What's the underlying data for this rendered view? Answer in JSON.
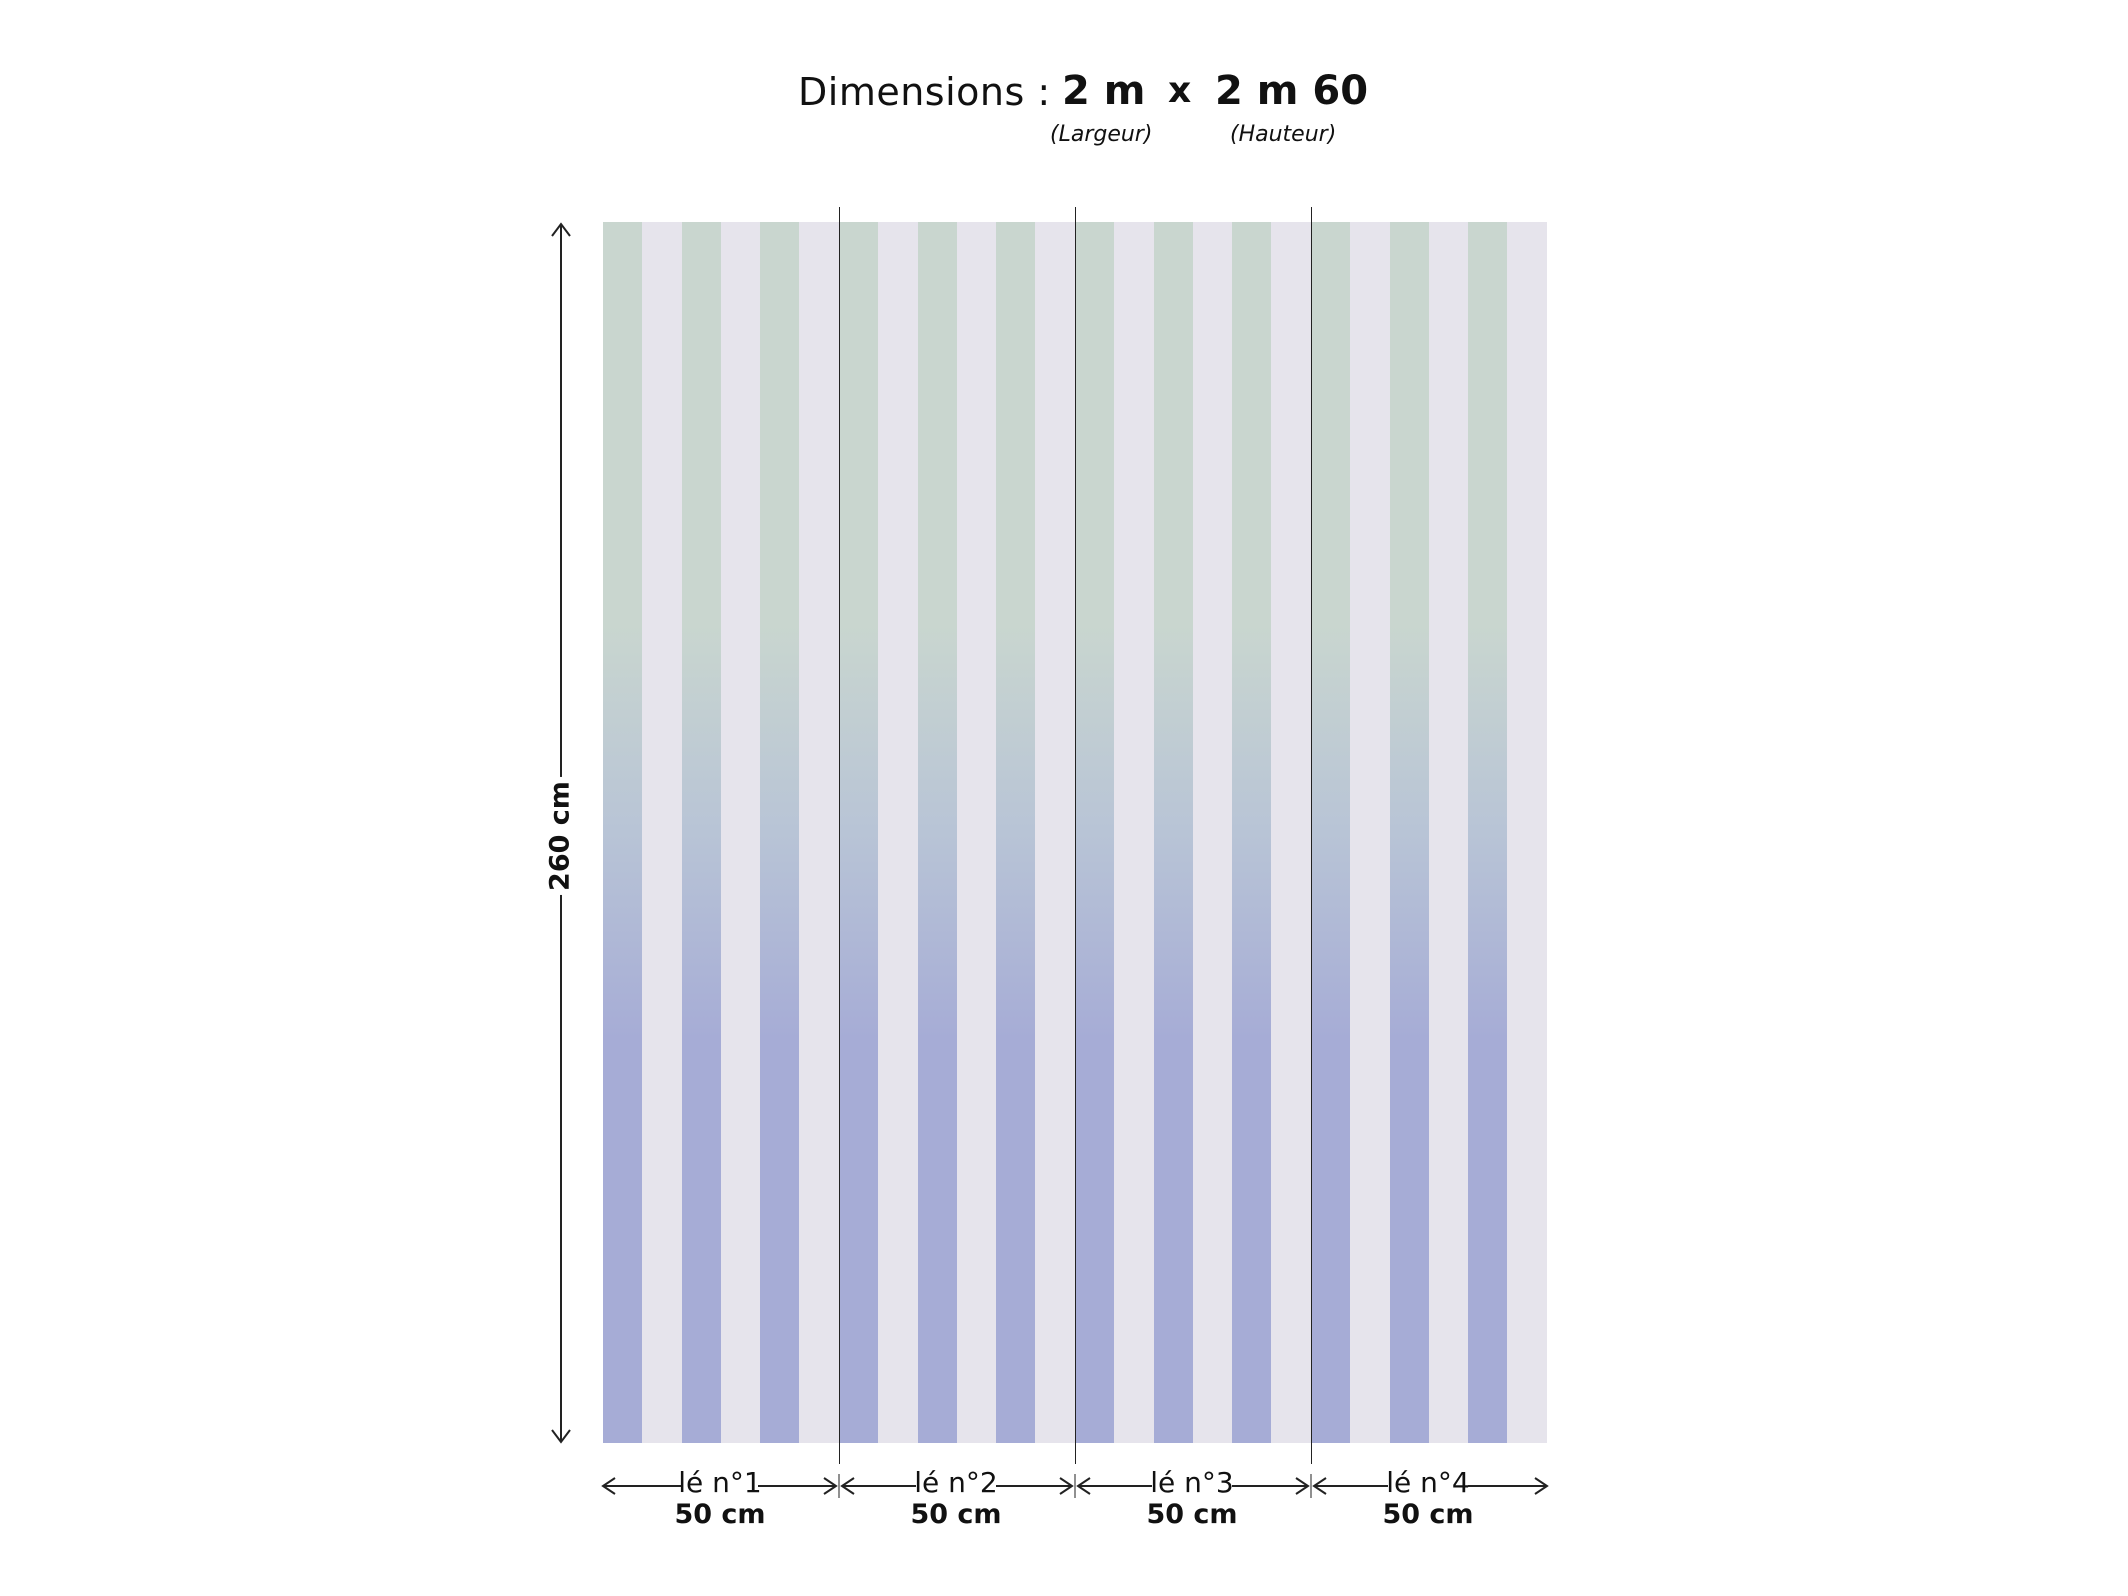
{
  "header": {
    "dimensions_label": "Dimensions :",
    "width_value": "2 m",
    "times_sign": "x",
    "height_value": "2 m 60",
    "width_caption": "(Largeur)",
    "height_caption": "(Hauteur)"
  },
  "height_dimension": {
    "label": "260 cm"
  },
  "strips": [
    {
      "name": "lé n°1",
      "width": "50 cm"
    },
    {
      "name": "lé n°2",
      "width": "50 cm"
    },
    {
      "name": "lé n°3",
      "width": "50 cm"
    },
    {
      "name": "lé n°4",
      "width": "50 cm"
    }
  ],
  "colors": {
    "background_stripe": "#e6e4ec",
    "stripe_top": "#c9d6cf",
    "stripe_middle": "#b8c4d6",
    "stripe_bottom": "#a6acd6",
    "line": "#222222"
  }
}
